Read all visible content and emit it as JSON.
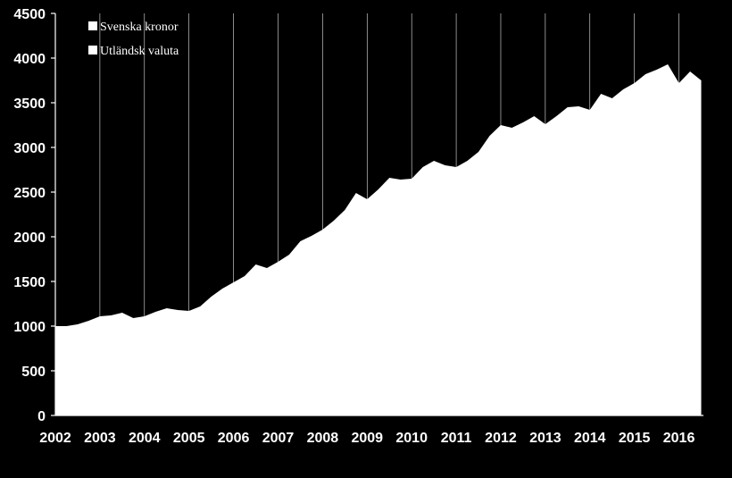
{
  "chart_data": {
    "type": "area",
    "title": "",
    "xlabel": "",
    "ylabel": "",
    "ylim": [
      0,
      4500
    ],
    "xlim": [
      2002,
      2016.55
    ],
    "grid": "vertical",
    "legend_position": "top-left",
    "colors": {
      "background": "#000000",
      "fill": "#ffffff"
    },
    "y_ticks": [
      "0",
      "500",
      "1000",
      "1500",
      "2000",
      "2500",
      "3000",
      "3500",
      "4000",
      "4500"
    ],
    "x_ticks": [
      "2002",
      "2003",
      "2004",
      "2005",
      "2006",
      "2007",
      "2008",
      "2009",
      "2010",
      "2011",
      "2012",
      "2013",
      "2014",
      "2015",
      "2016"
    ],
    "series": [
      {
        "name": "Svenska kronor",
        "color": "#ffffff"
      },
      {
        "name": "Utländsk valuta",
        "color": "#ffffff"
      }
    ],
    "x": [
      2002.0,
      2002.25,
      2002.5,
      2002.75,
      2003.0,
      2003.25,
      2003.5,
      2003.75,
      2004.0,
      2004.25,
      2004.5,
      2004.75,
      2005.0,
      2005.25,
      2005.5,
      2005.75,
      2006.0,
      2006.25,
      2006.5,
      2006.75,
      2007.0,
      2007.25,
      2007.5,
      2007.75,
      2008.0,
      2008.25,
      2008.5,
      2008.75,
      2009.0,
      2009.25,
      2009.5,
      2009.75,
      2010.0,
      2010.25,
      2010.5,
      2010.75,
      2011.0,
      2011.25,
      2011.5,
      2011.75,
      2012.0,
      2012.25,
      2012.5,
      2012.75,
      2013.0,
      2013.25,
      2013.5,
      2013.75,
      2014.0,
      2014.25,
      2014.5,
      2014.75,
      2015.0,
      2015.25,
      2015.5,
      2015.75,
      2016.0,
      2016.25,
      2016.5
    ],
    "total": [
      1000,
      1000,
      1020,
      1060,
      1110,
      1120,
      1150,
      1090,
      1110,
      1160,
      1200,
      1180,
      1170,
      1220,
      1330,
      1420,
      1490,
      1560,
      1690,
      1650,
      1720,
      1800,
      1950,
      2010,
      2080,
      2180,
      2300,
      2490,
      2420,
      2530,
      2660,
      2640,
      2650,
      2780,
      2850,
      2800,
      2780,
      2850,
      2950,
      3130,
      3250,
      3220,
      3280,
      3350,
      3260,
      3350,
      3450,
      3460,
      3420,
      3600,
      3550,
      3650,
      3720,
      3820,
      3870,
      3930,
      3720,
      3850,
      3750
    ]
  },
  "legend": {
    "items": [
      {
        "label": "Svenska kronor"
      },
      {
        "label": "Utländsk valuta"
      }
    ]
  }
}
